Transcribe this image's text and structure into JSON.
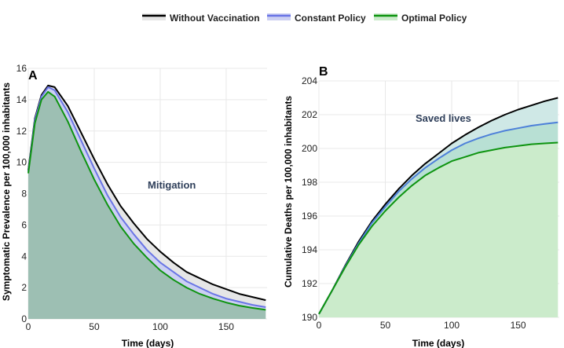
{
  "legend": {
    "placement": "top-center",
    "items": [
      {
        "label": "Without Vaccination",
        "color": "#000000"
      },
      {
        "label": "Constant Policy",
        "color": "#6a75e6"
      },
      {
        "label": "Optimal Policy",
        "color": "#0e9410"
      }
    ]
  },
  "chart_data": [
    {
      "type": "area",
      "panel_label": "A",
      "xlabel": "Time (days)",
      "ylabel": "Symptomatic Prevalence per 100,000 inhabitants",
      "xlim": [
        0,
        181
      ],
      "ylim": [
        0,
        16
      ],
      "xticks": [
        0,
        50,
        100,
        150
      ],
      "yticks": [
        0,
        2,
        4,
        6,
        8,
        10,
        12,
        14,
        16
      ],
      "grid": true,
      "annotation": "Mitigation",
      "x": [
        0,
        5,
        10,
        15,
        20,
        30,
        40,
        50,
        60,
        70,
        80,
        90,
        100,
        110,
        120,
        130,
        140,
        150,
        160,
        170,
        180
      ],
      "series": [
        {
          "name": "Without Vaccination",
          "color": "#000000",
          "fill": "#e6e6e6",
          "values": [
            9.5,
            12.8,
            14.3,
            14.9,
            14.8,
            13.6,
            11.9,
            10.2,
            8.6,
            7.2,
            6.1,
            5.1,
            4.3,
            3.6,
            3.0,
            2.6,
            2.2,
            1.9,
            1.6,
            1.4,
            1.2
          ]
        },
        {
          "name": "Constant Policy",
          "color": "#6a75e6",
          "fill": "#ccd0f2",
          "values": [
            9.4,
            12.7,
            14.2,
            14.8,
            14.6,
            13.2,
            11.4,
            9.6,
            7.9,
            6.5,
            5.4,
            4.4,
            3.6,
            3.0,
            2.4,
            2.0,
            1.6,
            1.3,
            1.1,
            0.9,
            0.75
          ]
        },
        {
          "name": "Optimal Policy",
          "color": "#0e9410",
          "fill": "#9dbfb3",
          "values": [
            9.3,
            12.5,
            14.0,
            14.5,
            14.2,
            12.6,
            10.7,
            8.9,
            7.3,
            5.9,
            4.8,
            3.9,
            3.1,
            2.5,
            2.0,
            1.6,
            1.3,
            1.05,
            0.85,
            0.7,
            0.58
          ]
        }
      ]
    },
    {
      "type": "area",
      "panel_label": "B",
      "xlabel": "Time (days)",
      "ylabel": "Cumulative Deaths per 100,000 inhabitants",
      "xlim": [
        0,
        181
      ],
      "ylim": [
        190,
        204
      ],
      "xticks": [
        0,
        50,
        100,
        150
      ],
      "yticks": [
        190,
        192,
        194,
        196,
        198,
        200,
        202,
        204
      ],
      "grid": true,
      "annotation": "Saved lives",
      "x": [
        0,
        10,
        20,
        30,
        40,
        50,
        60,
        70,
        80,
        90,
        100,
        110,
        120,
        130,
        140,
        150,
        160,
        170,
        180
      ],
      "series": [
        {
          "name": "Without Vaccination",
          "color": "#000000",
          "fill": "#cfe8e6",
          "values": [
            190.2,
            191.6,
            193.1,
            194.5,
            195.7,
            196.7,
            197.6,
            198.4,
            199.1,
            199.7,
            200.3,
            200.8,
            201.25,
            201.65,
            202.0,
            202.3,
            202.55,
            202.8,
            203.0
          ]
        },
        {
          "name": "Constant Policy",
          "color": "#4d80d9",
          "fill": "#b8e0d4",
          "values": [
            190.2,
            191.6,
            193.05,
            194.4,
            195.6,
            196.55,
            197.45,
            198.2,
            198.85,
            199.4,
            199.9,
            200.3,
            200.6,
            200.85,
            201.05,
            201.2,
            201.35,
            201.45,
            201.55
          ]
        },
        {
          "name": "Optimal Policy",
          "color": "#0e9410",
          "fill": "#cbebcb",
          "values": [
            190.2,
            191.6,
            193.0,
            194.3,
            195.4,
            196.3,
            197.1,
            197.8,
            198.4,
            198.85,
            199.25,
            199.5,
            199.75,
            199.9,
            200.05,
            200.15,
            200.25,
            200.3,
            200.35
          ]
        }
      ]
    }
  ]
}
